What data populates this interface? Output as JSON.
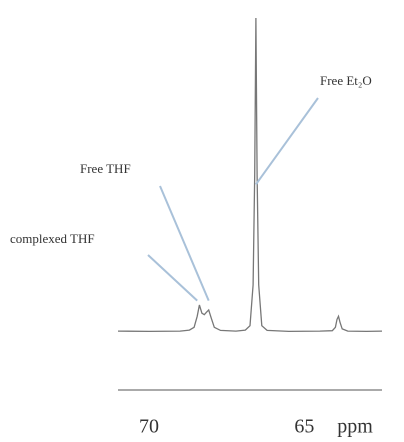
{
  "chart_data": {
    "type": "line",
    "x_label": "ppm",
    "x": [
      71.0,
      70.0,
      69.0,
      68.7,
      68.55,
      68.45,
      68.38,
      68.3,
      68.22,
      68.15,
      68.08,
      68.0,
      67.9,
      67.7,
      67.2,
      66.9,
      66.75,
      66.65,
      66.6,
      66.56,
      66.52,
      66.47,
      66.37,
      66.2,
      65.5,
      64.5,
      64.1,
      64.0,
      63.95,
      63.9,
      63.85,
      63.78,
      63.6,
      63.0,
      62.5
    ],
    "values": [
      0.3,
      0.2,
      0.3,
      0.6,
      1.5,
      5,
      8.6,
      6,
      5.5,
      6.3,
      7,
      4.5,
      1.5,
      0.5,
      0.3,
      0.6,
      2,
      15,
      50,
      100,
      50,
      15,
      2,
      0.5,
      0.2,
      0.3,
      0.4,
      1.5,
      4,
      5,
      3,
      1,
      0.3,
      0.2,
      0.3
    ],
    "color": "#777777",
    "xlim": [
      71,
      62.5
    ],
    "xticks": [
      70,
      65
    ],
    "ylim": [
      0,
      100
    ],
    "annotations": [
      {
        "text": "complexed THF",
        "x": 68.45,
        "y": 10
      },
      {
        "text": "Free THF",
        "x": 68.08,
        "y": 10
      },
      {
        "text": "Free Et₂O",
        "x": 66.56,
        "y": 47
      }
    ]
  }
}
